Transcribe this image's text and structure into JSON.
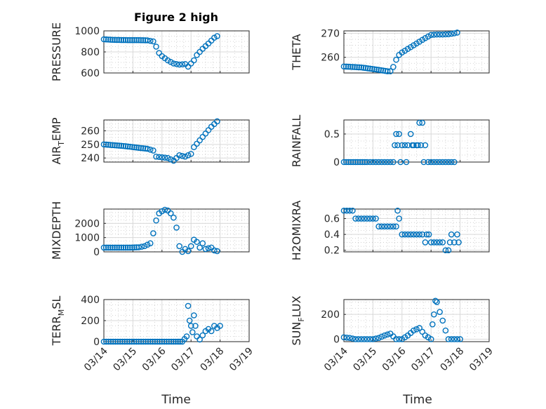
{
  "figure_title": "Figure 2 high",
  "xlabel": "Time",
  "x_tick_labels": [
    "03/14",
    "03/15",
    "03/16",
    "03/17",
    "03/18",
    "03/19"
  ],
  "chart_data": [
    {
      "type": "scatter",
      "id": "pressure",
      "ylabel": "PRESSURE",
      "ylim": [
        600,
        1000
      ],
      "yticks": [
        600,
        800,
        1000
      ],
      "x_range": [
        "03/14",
        "03/19"
      ],
      "grid": true,
      "color": "#0072BD",
      "x": [
        0,
        0.3,
        0.6,
        0.9,
        1.2,
        1.5,
        1.7,
        1.8,
        1.9,
        2.0,
        2.1,
        2.2,
        2.4,
        2.6,
        2.8,
        2.9,
        3.0,
        3.1,
        3.2,
        3.4,
        3.6,
        3.8,
        3.9
      ],
      "y": [
        920,
        915,
        913,
        912,
        912,
        910,
        900,
        850,
        790,
        760,
        740,
        720,
        690,
        680,
        685,
        660,
        690,
        720,
        770,
        830,
        880,
        935,
        950
      ]
    },
    {
      "type": "scatter",
      "id": "theta",
      "ylabel": "THETA",
      "ylim": [
        253.5,
        271
      ],
      "yticks": [
        260,
        270
      ],
      "x_range": [
        "03/14",
        "03/19"
      ],
      "grid": true,
      "color": "#0072BD",
      "x": [
        0,
        0.3,
        0.6,
        0.9,
        1.2,
        1.5,
        1.6,
        1.7,
        1.8,
        1.9,
        2.0,
        2.2,
        2.4,
        2.6,
        2.8,
        3.0,
        3.2,
        3.4,
        3.6,
        3.8,
        3.9
      ],
      "y": [
        256.2,
        256.0,
        255.8,
        255.3,
        254.8,
        254.2,
        254.2,
        256.0,
        259.0,
        261.0,
        262.0,
        263.5,
        265.0,
        266.5,
        268.0,
        269.3,
        269.5,
        269.5,
        269.6,
        270.0,
        270.3
      ]
    },
    {
      "type": "scatter",
      "id": "air_temp",
      "ylabel_main": "AIR",
      "ylabel_sub": "T",
      "ylabel_rest": "EMP",
      "ylim": [
        237,
        268
      ],
      "yticks": [
        240,
        250,
        260
      ],
      "x_range": [
        "03/14",
        "03/19"
      ],
      "grid": true,
      "color": "#0072BD",
      "x": [
        0,
        0.3,
        0.6,
        0.9,
        1.2,
        1.5,
        1.7,
        1.8,
        2.0,
        2.2,
        2.4,
        2.5,
        2.6,
        2.8,
        3.0,
        3.1,
        3.3,
        3.5,
        3.7,
        3.9
      ],
      "y": [
        250,
        249.5,
        249,
        248.3,
        247.5,
        246.8,
        245.5,
        241,
        240.5,
        240,
        238,
        240,
        242,
        241,
        243,
        248,
        253,
        258,
        263,
        267
      ]
    },
    {
      "type": "scatter",
      "id": "rainfall",
      "ylabel": "RAINFALL",
      "ylim": [
        0,
        0.75
      ],
      "yticks": [
        0,
        0.5
      ],
      "x_range": [
        "03/14",
        "03/19"
      ],
      "grid": true,
      "color": "#0072BD",
      "x": [
        0,
        0.4,
        0.8,
        1.0,
        1.2,
        1.4,
        1.6,
        1.7,
        1.75,
        1.8,
        1.85,
        1.9,
        1.95,
        2.0,
        2.1,
        2.15,
        2.2,
        2.3,
        2.35,
        2.4,
        2.5,
        2.55,
        2.6,
        2.65,
        2.7,
        2.75,
        2.8,
        2.9,
        3.0,
        3.2,
        3.4,
        3.6,
        3.8
      ],
      "y": [
        0,
        0,
        0,
        0,
        0,
        0,
        0,
        0,
        0.3,
        0.5,
        0.3,
        0.5,
        0,
        0.3,
        0.3,
        0,
        0.3,
        0.5,
        0.3,
        0.3,
        0.3,
        0.3,
        0.7,
        0.3,
        0.7,
        0,
        0.3,
        0,
        0,
        0,
        0,
        0,
        0
      ]
    },
    {
      "type": "scatter",
      "id": "mixdepth",
      "ylabel": "MIXDEPTH",
      "ylim": [
        0,
        3000
      ],
      "yticks": [
        0,
        1000,
        2000
      ],
      "x_range": [
        "03/14",
        "03/19"
      ],
      "grid": true,
      "color": "#0072BD",
      "x": [
        0,
        0.3,
        0.6,
        0.9,
        1.2,
        1.4,
        1.6,
        1.7,
        1.8,
        1.9,
        2.0,
        2.1,
        2.2,
        2.3,
        2.4,
        2.5,
        2.6,
        2.7,
        2.8,
        2.9,
        3.0,
        3.1,
        3.2,
        3.3,
        3.4,
        3.5,
        3.6,
        3.7,
        3.8,
        3.9
      ],
      "y": [
        300,
        300,
        300,
        300,
        320,
        400,
        600,
        1300,
        2200,
        2700,
        2850,
        2950,
        2900,
        2700,
        2400,
        1700,
        400,
        0,
        200,
        50,
        400,
        850,
        700,
        300,
        600,
        200,
        250,
        300,
        100,
        50
      ]
    },
    {
      "type": "scatter",
      "id": "h2omixra",
      "ylabel": "H2OMIXRA",
      "ylim": [
        0.18,
        0.72
      ],
      "yticks": [
        0.2,
        0.4,
        0.6
      ],
      "x_range": [
        "03/14",
        "03/19"
      ],
      "grid": true,
      "color": "#0072BD",
      "x": [
        0,
        0.2,
        0.4,
        0.6,
        0.8,
        1.0,
        1.2,
        1.4,
        1.6,
        1.8,
        1.85,
        1.9,
        2.0,
        2.2,
        2.4,
        2.6,
        2.8,
        2.85,
        3.0,
        3.2,
        3.4,
        3.5,
        3.6,
        3.65,
        3.7,
        3.8,
        3.9,
        3.95
      ],
      "y": [
        0.7,
        0.7,
        0.6,
        0.6,
        0.6,
        0.6,
        0.5,
        0.5,
        0.5,
        0.5,
        0.7,
        0.6,
        0.4,
        0.4,
        0.4,
        0.4,
        0.3,
        0.4,
        0.3,
        0.3,
        0.3,
        0.2,
        0.2,
        0.3,
        0.4,
        0.3,
        0.4,
        0.3
      ]
    },
    {
      "type": "scatter",
      "id": "terrain_msl",
      "ylabel_main": "TERR",
      "ylabel_sub": "M",
      "ylabel_rest": "SL",
      "ylim": [
        0,
        400
      ],
      "yticks": [
        0,
        200,
        400
      ],
      "x_range": [
        "03/14",
        "03/19"
      ],
      "grid": true,
      "color": "#0072BD",
      "x": [
        0,
        0.4,
        0.8,
        1.2,
        1.6,
        2.0,
        2.4,
        2.7,
        2.85,
        2.9,
        2.95,
        3.0,
        3.05,
        3.1,
        3.15,
        3.2,
        3.3,
        3.4,
        3.5,
        3.6,
        3.7,
        3.8,
        3.9,
        4.0
      ],
      "y": [
        0,
        0,
        0,
        0,
        0,
        0,
        0,
        0,
        50,
        340,
        200,
        150,
        90,
        250,
        150,
        50,
        20,
        60,
        100,
        120,
        100,
        150,
        130,
        150
      ]
    },
    {
      "type": "scatter",
      "id": "sun_flux",
      "ylabel_main": "SUN",
      "ylabel_sub": "F",
      "ylabel_rest": "LUX",
      "ylim": [
        -20,
        320
      ],
      "yticks": [
        0,
        200
      ],
      "x_range": [
        "03/14",
        "03/19"
      ],
      "grid": true,
      "color": "#0072BD",
      "x": [
        0,
        0.2,
        0.4,
        0.6,
        0.8,
        1.0,
        1.2,
        1.4,
        1.6,
        1.8,
        2.0,
        2.2,
        2.4,
        2.6,
        2.8,
        3.0,
        3.05,
        3.1,
        3.15,
        3.2,
        3.3,
        3.4,
        3.5,
        3.6,
        3.8,
        4.0
      ],
      "y": [
        15,
        10,
        0,
        0,
        0,
        0,
        10,
        30,
        45,
        0,
        0,
        30,
        70,
        90,
        30,
        0,
        120,
        200,
        310,
        300,
        220,
        150,
        70,
        0,
        0,
        0
      ]
    }
  ]
}
